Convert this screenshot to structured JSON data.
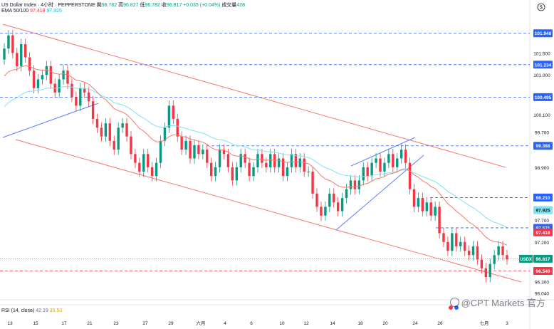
{
  "header": {
    "symbol": "US Dollar Index · 4小时 · PEPPERSTONE",
    "open_label": "開",
    "open": "96.782",
    "high_label": "高",
    "high": "96.827",
    "low_label": "低",
    "low": "96.782",
    "close_label": "收",
    "close": "96.817",
    "change": "+0.035 (+0.04%)",
    "volume_label": "成交量",
    "volume": "428",
    "ema_label": "EMA 50/100",
    "ema50": "97.418",
    "ema100": "97.925",
    "rsi_label": "RSI (14, close)",
    "rsi1": "42.19",
    "rsi2": "35.50"
  },
  "toolbar": {
    "dollar_icon": "$"
  },
  "watermark": {
    "text": "@CPT Markets 官方",
    "icon": "at-icon"
  },
  "colors": {
    "up": "#089981",
    "down": "#F23645",
    "channel": "#F7786B",
    "trend": "#5B7FFF",
    "ema50": "#F7786B",
    "ema100": "#7FE3F0",
    "level": "#2962FF",
    "last_price_bg": "#089981",
    "ema50_bg": "#F23645",
    "ema100_bg": "#7FE3F0",
    "level_red_bg": "#F23645"
  },
  "chart_data": {
    "type": "candlestick",
    "x_ticks": [
      "13",
      "15",
      "17",
      "21",
      "23",
      "27",
      "29",
      "六月",
      "4",
      "6",
      "10",
      "12",
      "14",
      "18",
      "20",
      "24",
      "26",
      "七月",
      "3"
    ],
    "y_ticks": [
      "101.500",
      "101.000",
      "100.100",
      "99.700",
      "98.900",
      "97.700",
      "97.200",
      "96.300",
      "96.040"
    ],
    "ylim": [
      95.9,
      102.3
    ],
    "levels": [
      {
        "price": 101.948,
        "label": "101.948",
        "style": "blue-dashed"
      },
      {
        "price": 101.234,
        "label": "101.234",
        "style": "blue-dashed"
      },
      {
        "price": 100.495,
        "label": "100.495",
        "style": "blue-dashed"
      },
      {
        "price": 99.388,
        "label": "99.388",
        "style": "blue-dashed"
      },
      {
        "price": 98.21,
        "label": "98.210",
        "style": "blue-dashed"
      },
      {
        "price": 97.521,
        "label": "97.521",
        "style": "blue-dashed"
      },
      {
        "price": 96.54,
        "label": "96.540",
        "style": "red-dashed"
      }
    ],
    "price_tags": [
      {
        "label": "97.925",
        "kind": "ema100"
      },
      {
        "label": "97.418",
        "kind": "ema50"
      },
      {
        "symbol": "USDX",
        "label": "96.817",
        "kind": "last"
      }
    ],
    "closes": [
      101.6,
      101.9,
      101.5,
      101.2,
      101.7,
      101.4,
      101.1,
      100.7,
      100.9,
      101.0,
      101.2,
      100.8,
      100.6,
      100.9,
      101.1,
      100.8,
      100.5,
      100.3,
      100.7,
      100.6,
      100.4,
      100.0,
      99.8,
      99.6,
      99.9,
      99.5,
      99.3,
      99.8,
      99.9,
      99.6,
      99.2,
      99.0,
      98.8,
      99.2,
      98.9,
      98.7,
      99.0,
      99.5,
      99.8,
      100.3,
      100.0,
      99.6,
      99.3,
      99.5,
      99.1,
      99.4,
      99.2,
      99.3,
      99.0,
      98.7,
      98.9,
      99.3,
      99.2,
      98.9,
      98.6,
      98.9,
      99.2,
      99.0,
      98.7,
      98.9,
      99.2,
      99.0,
      98.9,
      99.2,
      98.9,
      99.1,
      98.7,
      98.9,
      99.2,
      98.9,
      99.1,
      98.8,
      98.8,
      98.3,
      98.0,
      97.8,
      98.0,
      98.3,
      98.1,
      97.9,
      98.2,
      98.4,
      98.6,
      98.4,
      98.6,
      98.9,
      98.7,
      99.0,
      99.1,
      98.8,
      99.0,
      99.2,
      98.9,
      99.1,
      99.3,
      99.0,
      98.4,
      98.0,
      98.2,
      97.9,
      98.1,
      97.8,
      98.0,
      97.4,
      97.2,
      97.0,
      97.4,
      97.1,
      97.2,
      97.0,
      96.9,
      97.1,
      96.8,
      96.6,
      96.4,
      96.7,
      96.9,
      97.1,
      96.9,
      96.8
    ]
  }
}
